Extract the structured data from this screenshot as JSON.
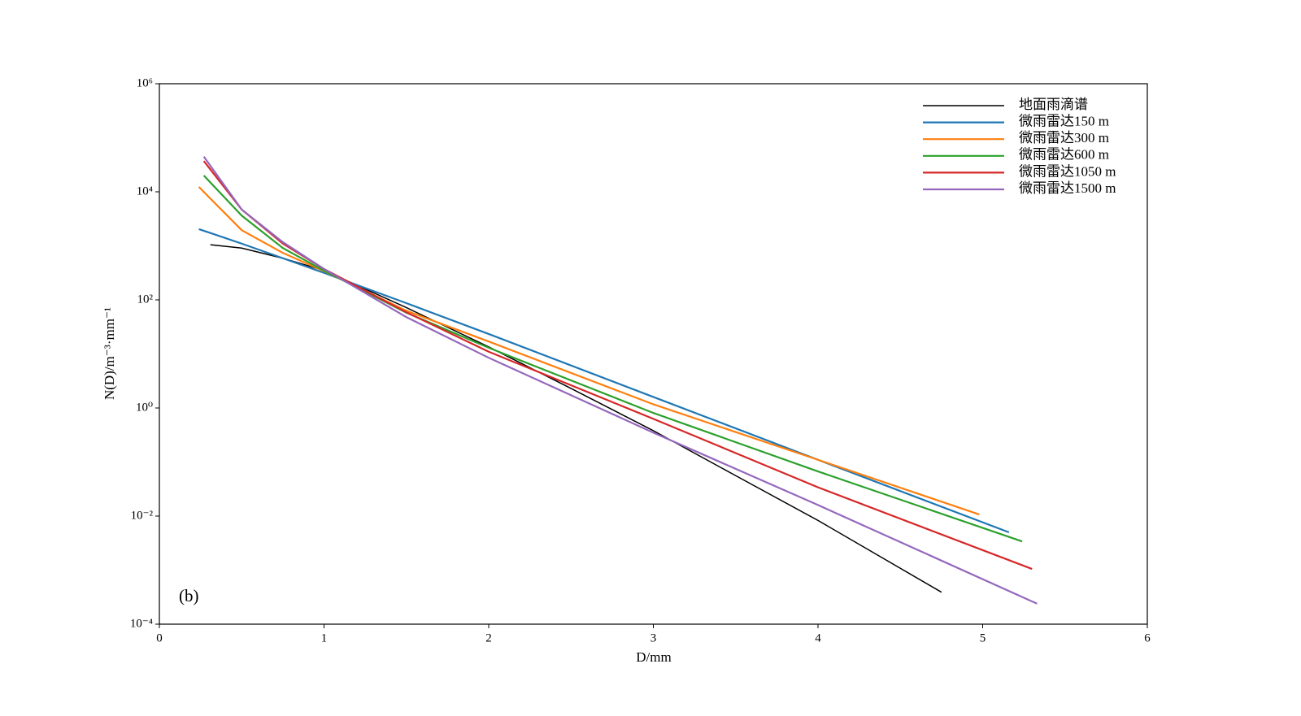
{
  "chart_data": {
    "type": "line",
    "annotation": "(b)",
    "xlabel": "D/mm",
    "ylabel": "N(D)/m⁻³·mm⁻¹",
    "yscale": "log",
    "legend": "upper right",
    "xlim": [
      0,
      6
    ],
    "xticks": [
      0,
      1,
      2,
      3,
      4,
      5,
      6
    ],
    "ylim": [
      0.0001,
      1000000
    ],
    "yticks": [
      {
        "value": 0.0001,
        "label": "10⁻⁴"
      },
      {
        "value": 0.01,
        "label": "10⁻²"
      },
      {
        "value": 1,
        "label": "10⁰"
      },
      {
        "value": 100,
        "label": "10²"
      },
      {
        "value": 10000,
        "label": "10⁴"
      },
      {
        "value": 1000000,
        "label": "10⁶"
      }
    ],
    "series": [
      {
        "name": "地面雨滴谱",
        "color": "#000000",
        "x": [
          0.31,
          0.5,
          0.75,
          1,
          1.5,
          2,
          2.5,
          3,
          3.5,
          4,
          4.75
        ],
        "values": [
          1050,
          910,
          590,
          350,
          72,
          13.5,
          2.3,
          0.38,
          0.056,
          0.0083,
          0.00039
        ]
      },
      {
        "name": "微雨雷达150 m",
        "color": "#1f77b4",
        "x": [
          0.24,
          0.5,
          0.75,
          1,
          1.5,
          2,
          3,
          4,
          5.16
        ],
        "values": [
          2040,
          1100,
          590,
          316,
          87,
          23.4,
          1.6,
          0.11,
          0.005
        ]
      },
      {
        "name": "微雨雷达300 m",
        "color": "#ff7f0e",
        "x": [
          0.24,
          0.5,
          0.75,
          1,
          1.5,
          2,
          3,
          4,
          4.98
        ],
        "values": [
          12300,
          1950,
          740,
          340,
          63,
          17,
          1.17,
          0.11,
          0.0107
        ]
      },
      {
        "name": "微雨雷达600 m",
        "color": "#2ca02c",
        "x": [
          0.27,
          0.5,
          0.75,
          1,
          1.5,
          2,
          3,
          4,
          5.24
        ],
        "values": [
          20000,
          3630,
          910,
          347,
          58,
          13,
          0.81,
          0.067,
          0.0034
        ]
      },
      {
        "name": "微雨雷达1050 m",
        "color": "#d62728",
        "x": [
          0.27,
          0.5,
          0.75,
          1,
          1.5,
          2,
          3,
          4,
          5.3
        ],
        "values": [
          37000,
          4700,
          1100,
          373,
          59,
          11,
          0.63,
          0.034,
          0.00105
        ]
      },
      {
        "name": "微雨雷达1500 m",
        "color": "#9467bd",
        "x": [
          0.27,
          0.5,
          0.75,
          1,
          1.5,
          2,
          3,
          4,
          5.33
        ],
        "values": [
          44700,
          4700,
          1170,
          373,
          48,
          8.5,
          0.35,
          0.016,
          0.00024
        ]
      }
    ]
  }
}
